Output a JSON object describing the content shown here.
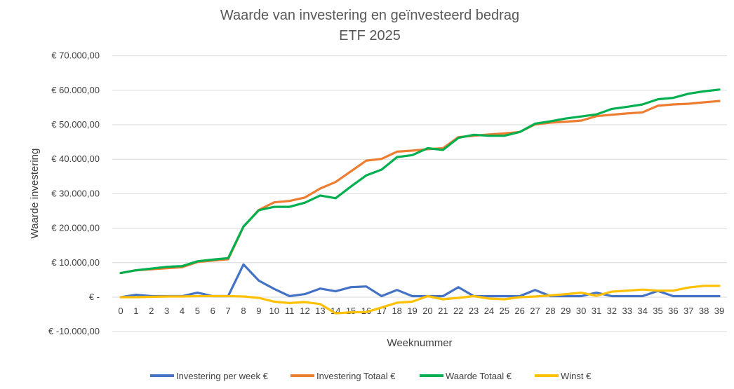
{
  "chart_data": {
    "type": "line",
    "title": "Waarde van investering en geïnvesteerd bedrag",
    "subtitle": "ETF 2025",
    "xlabel": "Weeknummer",
    "ylabel": "Waarde investering",
    "ylim": [
      -10000,
      70000
    ],
    "y_ticks": [
      70000,
      60000,
      50000,
      40000,
      30000,
      20000,
      10000,
      0,
      -10000
    ],
    "y_tick_labels": [
      "€ 70.000,00",
      "€ 60.000,00",
      "€ 50.000,00",
      "€ 40.000,00",
      "€ 30.000,00",
      "€ 20.000,00",
      "€ 10.000,00",
      "€ -",
      "€ -10.000,00"
    ],
    "x": [
      "0",
      "1",
      "2",
      "3",
      "4",
      "5",
      "6",
      "7",
      "8",
      "9",
      "10",
      "11",
      "12",
      "13",
      "14",
      "15",
      "16",
      "17",
      "18",
      "19",
      "20",
      "21",
      "22",
      "23",
      "24",
      "25",
      "26",
      "27",
      "28",
      "29",
      "30",
      "31",
      "32",
      "33",
      "34",
      "35",
      "36",
      "37",
      "38",
      "39"
    ],
    "grid": true,
    "legend_position": "bottom",
    "series": [
      {
        "name": "Investering per week €",
        "color": "#4472C4",
        "values": [
          0,
          700,
          300,
          300,
          300,
          1300,
          300,
          300,
          9500,
          4800,
          2400,
          300,
          900,
          2500,
          1700,
          2900,
          3100,
          300,
          2100,
          300,
          300,
          300,
          2900,
          300,
          300,
          300,
          300,
          2100,
          300,
          300,
          300,
          1300,
          300,
          300,
          300,
          1800,
          300,
          300,
          300,
          300
        ]
      },
      {
        "name": "Investering Totaal €",
        "color": "#ED7D31",
        "values": [
          7000,
          7800,
          8100,
          8400,
          8700,
          10200,
          10600,
          11000,
          20400,
          25300,
          27500,
          27900,
          28900,
          31500,
          33400,
          36500,
          39600,
          40100,
          42200,
          42500,
          42900,
          43200,
          46400,
          46800,
          47200,
          47500,
          47900,
          50100,
          50600,
          50900,
          51200,
          52500,
          52900,
          53300,
          53600,
          55500,
          55900,
          56100,
          56500,
          56900
        ]
      },
      {
        "name": "Waarde Totaal €",
        "color": "#00B050",
        "values": [
          7000,
          7800,
          8300,
          8800,
          9000,
          10400,
          10900,
          11300,
          20500,
          25200,
          26200,
          26200,
          27400,
          29500,
          28700,
          32100,
          35300,
          37000,
          40600,
          41200,
          43200,
          42700,
          46200,
          47100,
          46800,
          46800,
          47900,
          50300,
          51000,
          51800,
          52400,
          53000,
          54600,
          55200,
          55900,
          57400,
          57800,
          59000,
          59700,
          60200
        ]
      },
      {
        "name": "Winst €",
        "color": "#FFC000",
        "values": [
          0,
          0,
          100,
          200,
          200,
          300,
          300,
          300,
          200,
          -200,
          -1300,
          -1700,
          -1400,
          -2000,
          -4700,
          -4400,
          -4300,
          -3000,
          -1600,
          -1300,
          300,
          -600,
          -200,
          300,
          -400,
          -600,
          0,
          200,
          500,
          900,
          1300,
          400,
          1600,
          1900,
          2200,
          1900,
          1900,
          2800,
          3300,
          3300
        ]
      }
    ]
  }
}
